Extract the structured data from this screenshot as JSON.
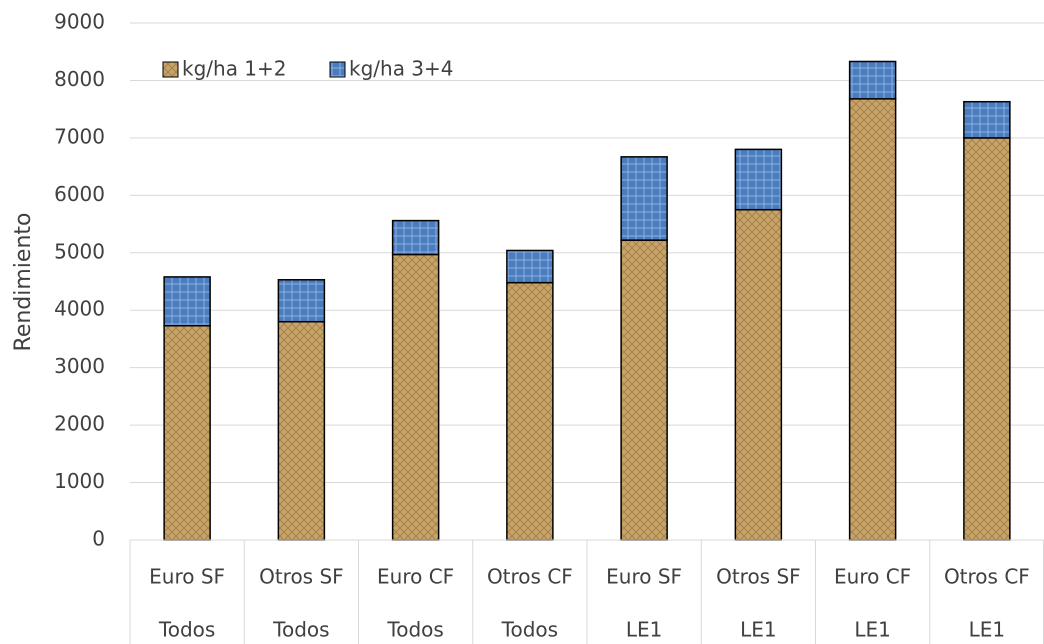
{
  "chart_data": {
    "type": "stacked_bar",
    "y_label": "Rendimiento",
    "categories": [
      "Euro SF",
      "Otros SF",
      "Euro CF",
      "Otros CF",
      "Euro SF",
      "Otros SF",
      "Euro CF",
      "Otros CF"
    ],
    "category_groups": [
      "Todos",
      "Todos",
      "Todos",
      "Todos",
      "LE1",
      "LE1",
      "LE1",
      "LE1"
    ],
    "series": [
      {
        "name": "kg/ha 1+2",
        "color": "#c9a468",
        "values": [
          3730,
          3800,
          4970,
          4480,
          5220,
          5750,
          7680,
          7000
        ]
      },
      {
        "name": "kg/ha 3+4",
        "color": "#4a7cc0",
        "values": [
          850,
          730,
          590,
          560,
          1450,
          1050,
          650,
          630
        ]
      }
    ],
    "ylim": [
      0,
      9000
    ],
    "yticks": [
      0,
      1000,
      2000,
      3000,
      4000,
      5000,
      6000,
      7000,
      8000,
      9000
    ],
    "grid": true,
    "legend": "upper left"
  }
}
